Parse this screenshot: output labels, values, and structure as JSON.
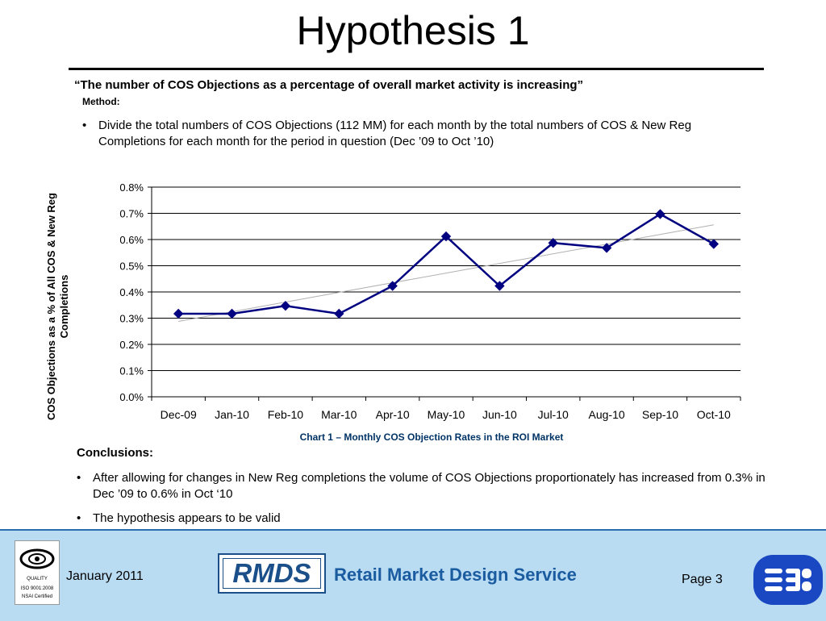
{
  "slide": {
    "title": "Hypothesis 1",
    "hypothesis": "“The number of COS Objections as a percentage of overall market activity is increasing”",
    "method_label": "Method:",
    "method_text": "Divide the total numbers of COS Objections (112 MM) for each month by the total numbers of COS & New Reg Completions for each month for the period in question (Dec ’09 to Oct ’10)",
    "bullet": "•"
  },
  "chart_data": {
    "type": "line",
    "title": "",
    "caption": "Chart 1 – Monthly COS Objection Rates in the ROI Market",
    "xlabel": "",
    "ylabel": "COS Objections as a % of All COS & New Reg Completions",
    "categories": [
      "Dec-09",
      "Jan-10",
      "Feb-10",
      "Mar-10",
      "Apr-10",
      "May-10",
      "Jun-10",
      "Jul-10",
      "Aug-10",
      "Sep-10",
      "Oct-10"
    ],
    "series": [
      {
        "values": [
          0.317,
          0.317,
          0.347,
          0.317,
          0.423,
          0.612,
          0.423,
          0.587,
          0.568,
          0.697,
          0.583
        ],
        "color": "#000080",
        "marker": "diamond"
      }
    ],
    "trendline": {
      "type": "linear",
      "color": "#b0b0b0"
    },
    "ylim": [
      0,
      0.8
    ],
    "yticks": [
      "0.0%",
      "0.1%",
      "0.2%",
      "0.3%",
      "0.4%",
      "0.5%",
      "0.6%",
      "0.7%",
      "0.8%"
    ],
    "grid": true,
    "legend": "none"
  },
  "conclusions": {
    "heading": "Conclusions:",
    "items": [
      "After allowing for changes in New Reg completions the volume of COS Objections proportionately has increased from 0.3% in Dec ’09 to 0.6% in Oct ‘10",
      "The hypothesis appears to be valid"
    ]
  },
  "footer": {
    "date": "January 2011",
    "logo_text": "RMDS",
    "tagline": "Retail Market Design Service",
    "page": "Page 3",
    "cert_lines": [
      "QUALITY",
      "ISO 9001:2008",
      "NSAI Certified"
    ],
    "background": "#b9dcf3",
    "brand_color": "#1b4f8a",
    "esb_color": "#1a47c2"
  }
}
